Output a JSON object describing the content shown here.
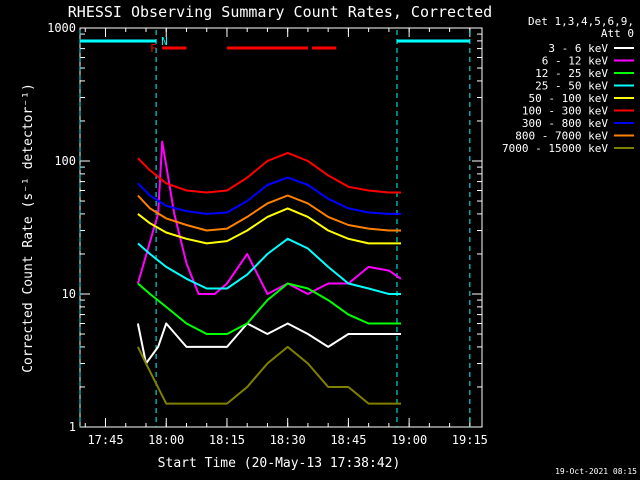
{
  "chart_data": {
    "type": "line",
    "title": "RHESSI Observing Summary Count Rates, Corrected",
    "xlabel": "Start Time (20-May-13 17:38:42)",
    "ylabel": "Corrected Count Rate (s⁻¹ detector⁻¹)",
    "yscale": "log",
    "ylim": [
      1,
      1000
    ],
    "xlim": [
      "17:38:42",
      "19:18:00"
    ],
    "x_ticks": [
      "17:45",
      "18:00",
      "18:15",
      "18:30",
      "18:45",
      "19:00",
      "19:15"
    ],
    "y_ticks": [
      "1",
      "10",
      "100",
      "1000"
    ],
    "legend_title": [
      "Det 1,3,4,5,6,9,",
      "Att 0"
    ],
    "legend_placement": "right",
    "series": [
      {
        "name": "3 - 6 keV",
        "color": "#ffffff",
        "x": [
          "17:53",
          "17:55",
          "17:58",
          "18:00",
          "18:05",
          "18:10",
          "18:15",
          "18:20",
          "18:25",
          "18:30",
          "18:35",
          "18:40",
          "18:45",
          "18:50",
          "18:55",
          "18:58"
        ],
        "values": [
          6,
          3,
          4,
          6,
          4,
          4,
          4,
          6,
          5,
          6,
          5,
          4,
          5,
          5,
          5,
          5
        ]
      },
      {
        "name": "6 - 12 keV",
        "color": "#ff00ff",
        "x": [
          "17:53",
          "17:58",
          "17:59",
          "18:02",
          "18:05",
          "18:08",
          "18:12",
          "18:15",
          "18:20",
          "18:25",
          "18:30",
          "18:35",
          "18:40",
          "18:45",
          "18:50",
          "18:55",
          "18:58"
        ],
        "values": [
          12,
          40,
          140,
          40,
          17,
          10,
          10,
          12,
          20,
          10,
          12,
          10,
          12,
          12,
          16,
          15,
          13
        ]
      },
      {
        "name": "12 - 25 keV",
        "color": "#00ff00",
        "x": [
          "17:53",
          "17:56",
          "18:00",
          "18:05",
          "18:10",
          "18:15",
          "18:20",
          "18:25",
          "18:30",
          "18:35",
          "18:40",
          "18:45",
          "18:50",
          "18:55",
          "18:58"
        ],
        "values": [
          12,
          10,
          8,
          6,
          5,
          5,
          6,
          9,
          12,
          11,
          9,
          7,
          6,
          6,
          6
        ]
      },
      {
        "name": "25 - 50 keV",
        "color": "#00ffff",
        "x": [
          "17:53",
          "17:56",
          "18:00",
          "18:05",
          "18:10",
          "18:15",
          "18:20",
          "18:25",
          "18:30",
          "18:35",
          "18:40",
          "18:45",
          "18:50",
          "18:55",
          "18:58"
        ],
        "values": [
          24,
          20,
          16,
          13,
          11,
          11,
          14,
          20,
          26,
          22,
          16,
          12,
          11,
          10,
          10
        ]
      },
      {
        "name": "50 - 100 keV",
        "color": "#ffff00",
        "x": [
          "17:53",
          "17:56",
          "18:00",
          "18:05",
          "18:10",
          "18:15",
          "18:20",
          "18:25",
          "18:30",
          "18:35",
          "18:40",
          "18:45",
          "18:50",
          "18:55",
          "18:58"
        ],
        "values": [
          40,
          34,
          29,
          26,
          24,
          25,
          30,
          38,
          44,
          38,
          30,
          26,
          24,
          24,
          24
        ]
      },
      {
        "name": "100 - 300 keV",
        "color": "#ff0000",
        "x": [
          "17:53",
          "17:56",
          "18:00",
          "18:05",
          "18:10",
          "18:15",
          "18:20",
          "18:25",
          "18:30",
          "18:35",
          "18:40",
          "18:45",
          "18:50",
          "18:55",
          "18:58"
        ],
        "values": [
          105,
          85,
          68,
          60,
          58,
          60,
          75,
          100,
          115,
          100,
          78,
          64,
          60,
          58,
          58
        ]
      },
      {
        "name": "300 - 800 keV",
        "color": "#0000ff",
        "x": [
          "17:53",
          "17:56",
          "18:00",
          "18:05",
          "18:10",
          "18:15",
          "18:20",
          "18:25",
          "18:30",
          "18:35",
          "18:40",
          "18:45",
          "18:50",
          "18:55",
          "18:58"
        ],
        "values": [
          68,
          55,
          46,
          42,
          40,
          41,
          50,
          66,
          75,
          66,
          52,
          44,
          41,
          40,
          40
        ]
      },
      {
        "name": "800 - 7000 keV",
        "color": "#ff8000",
        "x": [
          "17:53",
          "17:56",
          "18:00",
          "18:05",
          "18:10",
          "18:15",
          "18:20",
          "18:25",
          "18:30",
          "18:35",
          "18:40",
          "18:45",
          "18:50",
          "18:55",
          "18:58"
        ],
        "values": [
          55,
          44,
          37,
          33,
          30,
          31,
          38,
          48,
          55,
          48,
          38,
          33,
          31,
          30,
          30
        ]
      },
      {
        "name": "7000 - 15000 keV",
        "color": "#808000",
        "x": [
          "17:53",
          "17:55",
          "18:00",
          "18:05",
          "18:10",
          "18:15",
          "18:20",
          "18:25",
          "18:30",
          "18:35",
          "18:40",
          "18:45",
          "18:50",
          "18:55",
          "18:58"
        ],
        "values": [
          4,
          3,
          1.5,
          1.5,
          1.5,
          1.5,
          2,
          3,
          4,
          3,
          2,
          2,
          1.5,
          1.5,
          1.5
        ]
      }
    ],
    "flags": [
      {
        "label": "F",
        "color": "#ff0000",
        "segments": [
          [
            "17:59",
            "18:05"
          ],
          [
            "18:15",
            "18:35"
          ],
          [
            "18:36",
            "18:42"
          ]
        ]
      },
      {
        "label": "N",
        "color": "#00ffff",
        "segments": [
          [
            "17:38:42",
            "17:57:30"
          ],
          [
            "18:57",
            "19:15"
          ]
        ]
      }
    ]
  },
  "timestamp": "19-Oct-2021 08:15"
}
